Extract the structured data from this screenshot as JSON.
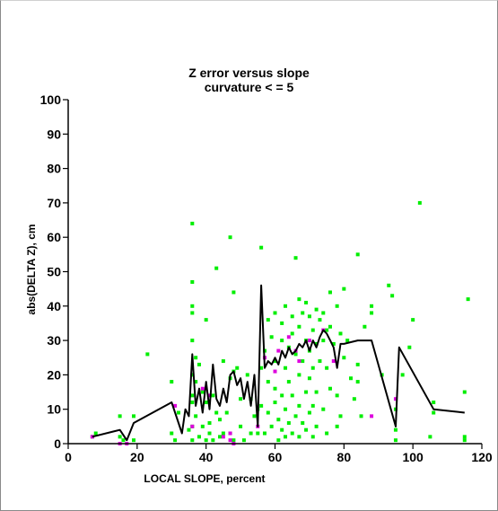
{
  "chart_data": {
    "type": "scatter",
    "title": "Z error versus slope",
    "subtitle": "curvature < = 5",
    "xlabel": "LOCAL SLOPE, percent",
    "ylabel": "abs(DELTA Z), cm",
    "xlim": [
      0,
      120
    ],
    "ylim": [
      0,
      100
    ],
    "xticks": [
      0,
      20,
      40,
      60,
      80,
      100,
      120
    ],
    "yticks": [
      0,
      10,
      20,
      30,
      40,
      50,
      60,
      70,
      80,
      90,
      100
    ],
    "grid": false,
    "legend": "none",
    "colors": {
      "points_main": "#00ee00",
      "points_secondary": "#dd00dd",
      "line": "#000000",
      "axes": "#000000"
    },
    "series": [
      {
        "kind": "scatter",
        "color": "#00ee00",
        "points": [
          [
            7,
            2
          ],
          [
            8,
            3
          ],
          [
            15,
            2
          ],
          [
            15,
            8
          ],
          [
            16,
            1
          ],
          [
            19,
            1
          ],
          [
            19,
            8
          ],
          [
            23,
            26
          ],
          [
            30,
            3
          ],
          [
            30,
            18
          ],
          [
            31,
            1
          ],
          [
            32,
            9
          ],
          [
            35,
            4
          ],
          [
            36,
            12
          ],
          [
            37,
            8
          ],
          [
            36,
            64
          ],
          [
            36,
            47
          ],
          [
            36,
            40
          ],
          [
            36,
            38
          ],
          [
            36,
            30
          ],
          [
            36,
            20
          ],
          [
            36,
            14
          ],
          [
            36,
            5
          ],
          [
            36,
            1
          ],
          [
            37,
            25
          ],
          [
            37,
            18
          ],
          [
            38,
            23
          ],
          [
            38,
            2
          ],
          [
            39,
            15
          ],
          [
            39,
            5
          ],
          [
            40,
            12
          ],
          [
            40,
            1
          ],
          [
            40,
            36
          ],
          [
            41,
            6
          ],
          [
            41,
            3
          ],
          [
            42,
            14
          ],
          [
            42,
            1
          ],
          [
            43,
            51
          ],
          [
            43,
            9
          ],
          [
            44,
            7
          ],
          [
            44,
            2
          ],
          [
            45,
            24
          ],
          [
            45,
            3
          ],
          [
            46,
            9
          ],
          [
            47,
            60
          ],
          [
            47,
            19
          ],
          [
            47,
            3
          ],
          [
            48,
            44
          ],
          [
            48,
            21
          ],
          [
            48,
            1
          ],
          [
            49,
            22
          ],
          [
            50,
            5
          ],
          [
            50,
            13
          ],
          [
            51,
            1
          ],
          [
            52,
            20
          ],
          [
            53,
            13
          ],
          [
            53,
            3
          ],
          [
            54,
            8
          ],
          [
            55,
            10
          ],
          [
            55,
            3
          ],
          [
            56,
            57
          ],
          [
            56,
            22
          ],
          [
            56,
            11
          ],
          [
            57,
            3
          ],
          [
            57,
            27
          ],
          [
            58,
            36
          ],
          [
            58,
            18
          ],
          [
            58,
            9
          ],
          [
            59,
            5
          ],
          [
            59,
            31
          ],
          [
            60,
            38
          ],
          [
            60,
            24
          ],
          [
            60,
            16
          ],
          [
            60,
            12
          ],
          [
            61,
            7
          ],
          [
            61,
            1
          ],
          [
            62,
            30
          ],
          [
            62,
            35
          ],
          [
            62,
            14
          ],
          [
            62,
            4
          ],
          [
            63,
            40
          ],
          [
            63,
            22
          ],
          [
            63,
            10
          ],
          [
            63,
            2
          ],
          [
            64,
            28
          ],
          [
            64,
            18
          ],
          [
            64,
            6
          ],
          [
            65,
            37
          ],
          [
            65,
            32
          ],
          [
            65,
            14
          ],
          [
            65,
            3
          ],
          [
            66,
            54
          ],
          [
            66,
            26
          ],
          [
            66,
            8
          ],
          [
            67,
            42
          ],
          [
            67,
            34
          ],
          [
            67,
            20
          ],
          [
            67,
            11
          ],
          [
            67,
            2
          ],
          [
            68,
            38
          ],
          [
            68,
            24
          ],
          [
            68,
            6
          ],
          [
            69,
            41
          ],
          [
            69,
            30
          ],
          [
            69,
            15
          ],
          [
            69,
            4
          ],
          [
            70,
            37
          ],
          [
            70,
            27
          ],
          [
            70,
            19
          ],
          [
            70,
            9
          ],
          [
            71,
            33
          ],
          [
            71,
            22
          ],
          [
            71,
            11
          ],
          [
            71,
            2
          ],
          [
            72,
            39
          ],
          [
            72,
            29
          ],
          [
            72,
            15
          ],
          [
            72,
            5
          ],
          [
            73,
            36
          ],
          [
            73,
            24
          ],
          [
            74,
            38
          ],
          [
            74,
            30
          ],
          [
            74,
            10
          ],
          [
            75,
            33
          ],
          [
            75,
            22
          ],
          [
            75,
            3
          ],
          [
            76,
            44
          ],
          [
            76,
            34
          ],
          [
            76,
            16
          ],
          [
            77,
            29
          ],
          [
            78,
            40
          ],
          [
            78,
            14
          ],
          [
            78,
            5
          ],
          [
            79,
            32
          ],
          [
            79,
            8
          ],
          [
            80,
            45
          ],
          [
            80,
            25
          ],
          [
            81,
            30
          ],
          [
            82,
            19
          ],
          [
            83,
            13
          ],
          [
            84,
            55
          ],
          [
            84,
            23
          ],
          [
            84,
            18
          ],
          [
            85,
            8
          ],
          [
            86,
            34
          ],
          [
            88,
            40
          ],
          [
            88,
            38
          ],
          [
            91,
            20
          ],
          [
            93,
            46
          ],
          [
            94,
            43
          ],
          [
            95,
            10
          ],
          [
            95,
            4
          ],
          [
            95,
            1
          ],
          [
            97,
            20
          ],
          [
            99,
            28
          ],
          [
            100,
            36
          ],
          [
            102,
            70
          ],
          [
            105,
            2
          ],
          [
            106,
            12
          ],
          [
            106,
            9
          ],
          [
            115,
            15
          ],
          [
            115,
            2
          ],
          [
            115,
            1
          ],
          [
            116,
            42
          ]
        ]
      },
      {
        "kind": "scatter",
        "color": "#dd00dd",
        "points": [
          [
            7,
            2
          ],
          [
            15,
            0
          ],
          [
            17,
            0
          ],
          [
            31,
            11
          ],
          [
            36,
            5
          ],
          [
            39,
            16
          ],
          [
            41,
            14
          ],
          [
            45,
            2
          ],
          [
            47,
            3
          ],
          [
            47,
            1
          ],
          [
            48,
            0
          ],
          [
            55,
            5
          ],
          [
            57,
            25
          ],
          [
            60,
            21
          ],
          [
            61,
            27
          ],
          [
            64,
            31
          ],
          [
            66,
            27
          ],
          [
            67,
            24
          ],
          [
            70,
            30
          ],
          [
            74,
            33
          ],
          [
            77,
            24
          ],
          [
            88,
            8
          ],
          [
            95,
            13
          ]
        ]
      },
      {
        "kind": "line",
        "color": "#000000",
        "points": [
          [
            7,
            2
          ],
          [
            15,
            4
          ],
          [
            17,
            1
          ],
          [
            19,
            6
          ],
          [
            30,
            12
          ],
          [
            33,
            3
          ],
          [
            34,
            10
          ],
          [
            35,
            8
          ],
          [
            36,
            26
          ],
          [
            37,
            11
          ],
          [
            38,
            16
          ],
          [
            39,
            9
          ],
          [
            40,
            18
          ],
          [
            41,
            10
          ],
          [
            42,
            23
          ],
          [
            43,
            13
          ],
          [
            44,
            11
          ],
          [
            45,
            16
          ],
          [
            46,
            12
          ],
          [
            47,
            20
          ],
          [
            48,
            21
          ],
          [
            49,
            17
          ],
          [
            50,
            19
          ],
          [
            51,
            13
          ],
          [
            52,
            18
          ],
          [
            53,
            11
          ],
          [
            54,
            20
          ],
          [
            55,
            5
          ],
          [
            56,
            46
          ],
          [
            57,
            22
          ],
          [
            58,
            24
          ],
          [
            59,
            23
          ],
          [
            60,
            25
          ],
          [
            61,
            23
          ],
          [
            62,
            27
          ],
          [
            63,
            25
          ],
          [
            64,
            28
          ],
          [
            65,
            26
          ],
          [
            66,
            27
          ],
          [
            67,
            29
          ],
          [
            68,
            28
          ],
          [
            69,
            30
          ],
          [
            70,
            27
          ],
          [
            71,
            30
          ],
          [
            72,
            28
          ],
          [
            73,
            31
          ],
          [
            74,
            33
          ],
          [
            75,
            32
          ],
          [
            76,
            30
          ],
          [
            77,
            28
          ],
          [
            78,
            22
          ],
          [
            79,
            29
          ],
          [
            80,
            29
          ],
          [
            84,
            30
          ],
          [
            88,
            30
          ],
          [
            95,
            5
          ],
          [
            96,
            28
          ],
          [
            106,
            10
          ],
          [
            115,
            9
          ]
        ]
      }
    ]
  }
}
